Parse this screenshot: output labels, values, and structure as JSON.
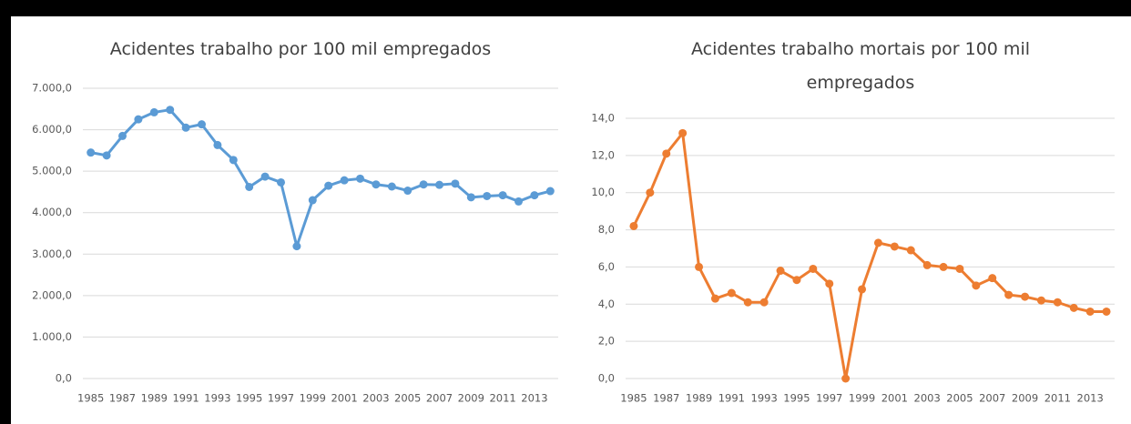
{
  "chart_data": [
    {
      "type": "line",
      "title": "Acidentes trabalho por 100 mil empregados",
      "categories": [
        "1985",
        null,
        "1987",
        null,
        "1989",
        null,
        "1991",
        null,
        "1993",
        null,
        "1995",
        null,
        "1997",
        null,
        "1999",
        null,
        "2001",
        null,
        "2003",
        null,
        "2005",
        null,
        "2007",
        null,
        "2009",
        null,
        "2011",
        null,
        "2013",
        null
      ],
      "values": [
        5450,
        5380,
        5850,
        6250,
        6420,
        6480,
        6050,
        6130,
        5630,
        5270,
        4620,
        4870,
        4730,
        3190,
        4300,
        4650,
        4780,
        4820,
        4680,
        4630,
        4530,
        4680,
        4670,
        4700,
        4370,
        4400,
        4420,
        4270,
        4420,
        4520
      ],
      "color": "#5b9bd5",
      "ylim": [
        0,
        7000
      ],
      "yticks": [
        {
          "value": 0,
          "label": "0,0"
        },
        {
          "value": 1000,
          "label": "1.000,0"
        },
        {
          "value": 2000,
          "label": "2.000,0"
        },
        {
          "value": 3000,
          "label": "3.000,0"
        },
        {
          "value": 4000,
          "label": "4.000,0"
        },
        {
          "value": 5000,
          "label": "5.000,0"
        },
        {
          "value": 6000,
          "label": "6.000,0"
        },
        {
          "value": 7000,
          "label": "7.000,0"
        }
      ],
      "grid": true
    },
    {
      "type": "line",
      "title": "Acidentes trabalho mortais por 100 mil empregados",
      "categories": [
        "1985",
        null,
        "1987",
        null,
        "1989",
        null,
        "1991",
        null,
        "1993",
        null,
        "1995",
        null,
        "1997",
        null,
        "1999",
        null,
        "2001",
        null,
        "2003",
        null,
        "2005",
        null,
        "2007",
        null,
        "2009",
        null,
        "2011",
        null,
        "2013",
        null
      ],
      "values": [
        8.2,
        10.0,
        12.1,
        13.2,
        6.0,
        4.3,
        4.6,
        4.1,
        4.1,
        5.8,
        5.3,
        5.9,
        5.1,
        0.0,
        4.8,
        7.3,
        7.1,
        6.9,
        6.1,
        6.0,
        5.9,
        5.0,
        5.4,
        4.5,
        4.4,
        4.2,
        4.1,
        3.8,
        3.6,
        3.6
      ],
      "color": "#ed7d31",
      "ylim": [
        0,
        14
      ],
      "yticks": [
        {
          "value": 0,
          "label": "0,0"
        },
        {
          "value": 2,
          "label": "2,0"
        },
        {
          "value": 4,
          "label": "4,0"
        },
        {
          "value": 6,
          "label": "6,0"
        },
        {
          "value": 8,
          "label": "8,0"
        },
        {
          "value": 10,
          "label": "10,0"
        },
        {
          "value": 12,
          "label": "12,0"
        },
        {
          "value": 14,
          "label": "14,0"
        }
      ],
      "grid": true
    }
  ]
}
